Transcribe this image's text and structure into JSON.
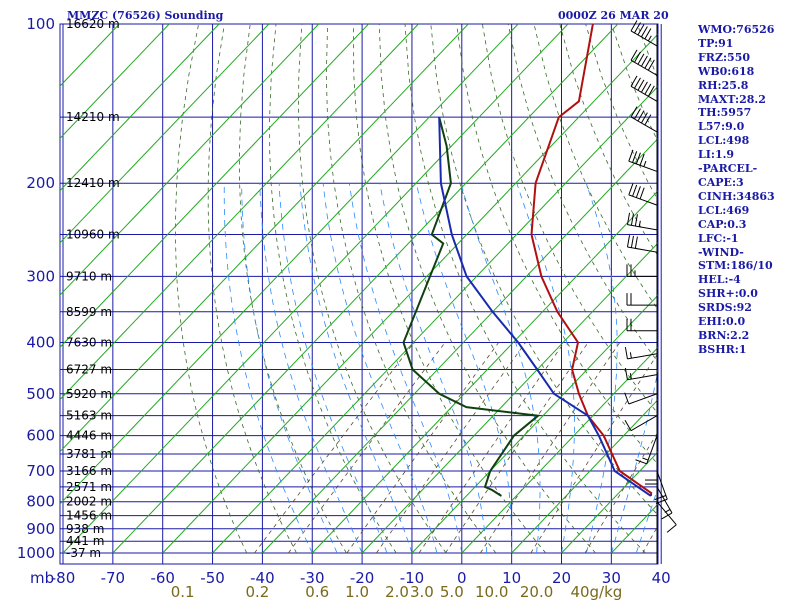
{
  "header": {
    "title": "MMZC (76526) Sounding",
    "date": "0000Z 26 MAR 20"
  },
  "indices": [
    "WMO:76526",
    "TP:91",
    "FRZ:550",
    "WB0:618",
    "RH:25.8",
    "MAXT:28.2",
    "TH:5957",
    "L57:9.0",
    "LCL:498",
    "LI:1.9",
    "-PARCEL-",
    "CAPE:3",
    "CINH:34863",
    "LCL:469",
    "CAP:0.3",
    "LFC:-1",
    "-WIND-",
    "STM:186/10",
    "HEL:-4",
    "SHR+:0.0",
    "SRDS:92",
    "EHI:0.0",
    "BRN:2.2",
    "BSHR:1"
  ],
  "chart_data": {
    "type": "line",
    "title": "MMZC (76526) Sounding",
    "date": "0000Z 26 MAR 20",
    "y_unit": "mb",
    "pressure_ticks": [
      100,
      200,
      300,
      400,
      500,
      600,
      700,
      800,
      900,
      1000
    ],
    "temperature_ticks": [
      -80,
      -70,
      -60,
      -50,
      -40,
      -30,
      -20,
      -10,
      0,
      10,
      20,
      30,
      40
    ],
    "mixing_ratio_ticks": [
      "0.1",
      "0.2",
      "0.6",
      "1.0",
      "2.0",
      "3.0",
      "5.0",
      "10.0",
      "20.0",
      "40g/kg"
    ],
    "height_labels": [
      {
        "p": 100,
        "label": "16620 m"
      },
      {
        "p": 150,
        "label": "14210 m"
      },
      {
        "p": 200,
        "label": "12410 m"
      },
      {
        "p": 250,
        "label": "10960 m"
      },
      {
        "p": 300,
        "label": "9710 m"
      },
      {
        "p": 350,
        "label": "8599 m"
      },
      {
        "p": 400,
        "label": "7630 m"
      },
      {
        "p": 450,
        "label": "6727 m"
      },
      {
        "p": 500,
        "label": "5920 m"
      },
      {
        "p": 550,
        "label": "5163 m"
      },
      {
        "p": 600,
        "label": "4446 m"
      },
      {
        "p": 650,
        "label": "3781 m"
      },
      {
        "p": 700,
        "label": "3166 m"
      },
      {
        "p": 750,
        "label": "2571 m"
      },
      {
        "p": 800,
        "label": "2002 m"
      },
      {
        "p": 850,
        "label": "1456 m"
      },
      {
        "p": 900,
        "label": "938 m"
      },
      {
        "p": 950,
        "label": "441 m"
      },
      {
        "p": 1000,
        "label": "-37 m"
      }
    ],
    "series": [
      {
        "name": "Temperature",
        "color": "#b01010",
        "points": [
          [
            100,
            -75
          ],
          [
            140,
            -63
          ],
          [
            150,
            -64
          ],
          [
            200,
            -56
          ],
          [
            250,
            -47
          ],
          [
            300,
            -37
          ],
          [
            350,
            -27
          ],
          [
            400,
            -17
          ],
          [
            450,
            -13
          ],
          [
            500,
            -7
          ],
          [
            550,
            -1
          ],
          [
            600,
            6
          ],
          [
            700,
            16
          ],
          [
            770,
            26.5
          ],
          [
            780,
            27
          ]
        ]
      },
      {
        "name": "Dewpoint",
        "color": "#104010",
        "points": [
          [
            150,
            -88
          ],
          [
            170,
            -81
          ],
          [
            200,
            -73
          ],
          [
            250,
            -67
          ],
          [
            260,
            -63
          ],
          [
            400,
            -52
          ],
          [
            450,
            -45
          ],
          [
            500,
            -35
          ],
          [
            530,
            -27
          ],
          [
            550,
            -11
          ],
          [
            600,
            -12
          ],
          [
            700,
            -10
          ],
          [
            750,
            -8
          ],
          [
            760,
            -6
          ],
          [
            780,
            -3
          ]
        ]
      },
      {
        "name": "Parcel",
        "color": "#1a2ab0",
        "points": [
          [
            150,
            -88
          ],
          [
            200,
            -75
          ],
          [
            250,
            -63
          ],
          [
            300,
            -52
          ],
          [
            350,
            -40
          ],
          [
            400,
            -29
          ],
          [
            450,
            -20
          ],
          [
            500,
            -12
          ],
          [
            550,
            -1
          ],
          [
            600,
            5
          ],
          [
            700,
            15
          ],
          [
            780,
            27
          ]
        ]
      }
    ],
    "wind_barbs": [
      {
        "p": 110,
        "dir": 300,
        "kt": 55
      },
      {
        "p": 125,
        "dir": 300,
        "kt": 60
      },
      {
        "p": 140,
        "dir": 300,
        "kt": 60
      },
      {
        "p": 160,
        "dir": 300,
        "kt": 50
      },
      {
        "p": 190,
        "dir": 290,
        "kt": 45
      },
      {
        "p": 220,
        "dir": 290,
        "kt": 40
      },
      {
        "p": 245,
        "dir": 280,
        "kt": 35
      },
      {
        "p": 270,
        "dir": 280,
        "kt": 30
      },
      {
        "p": 300,
        "dir": 270,
        "kt": 25
      },
      {
        "p": 340,
        "dir": 270,
        "kt": 20
      },
      {
        "p": 380,
        "dir": 270,
        "kt": 20
      },
      {
        "p": 420,
        "dir": 260,
        "kt": 15
      },
      {
        "p": 460,
        "dir": 260,
        "kt": 15
      },
      {
        "p": 500,
        "dir": 250,
        "kt": 10
      },
      {
        "p": 550,
        "dir": 240,
        "kt": 10
      },
      {
        "p": 600,
        "dir": 200,
        "kt": 15
      },
      {
        "p": 650,
        "dir": 180,
        "kt": 20
      },
      {
        "p": 700,
        "dir": 160,
        "kt": 20
      },
      {
        "p": 750,
        "dir": 150,
        "kt": 15
      },
      {
        "p": 800,
        "dir": 140,
        "kt": 10
      }
    ],
    "ylim": [
      1000,
      100
    ],
    "xlim": [
      -80,
      40
    ],
    "grid": true
  }
}
